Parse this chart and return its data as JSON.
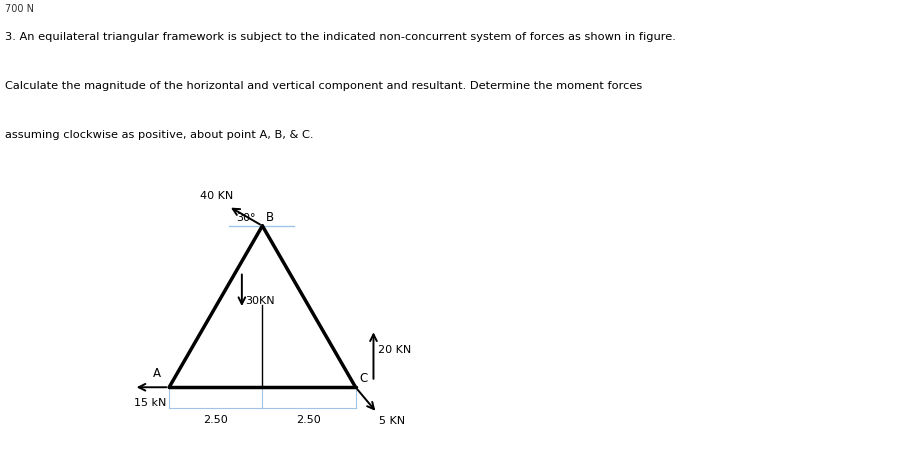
{
  "title_line1": "3. An equilateral triangular framework is subject to the indicated non-concurrent system of forces as shown in figure.",
  "title_line2": "Calculate the magnitude of the horizontal and vertical component and resultant. Determine the moment forces",
  "title_line3": "assuming clockwise as positive, about point A, B, & C.",
  "header_text": "700 N",
  "bg_color": "#ffffff",
  "triangle": {
    "A": [
      0.0,
      0.0
    ],
    "B": [
      2.5,
      4.33
    ],
    "C": [
      5.0,
      0.0
    ]
  },
  "dim_line_color": "#a0c4e8",
  "triangle_color": "#000000",
  "force_color": "#000000",
  "labels": {
    "A": "A",
    "B": "B",
    "C": "C",
    "40KN": "40 KN",
    "30KN": "30KN",
    "20KN": "20 KN",
    "15KN": "15 kN",
    "5KN": "5 KN",
    "30deg": "30°",
    "dim1": "2.50",
    "dim2": "2.50"
  }
}
